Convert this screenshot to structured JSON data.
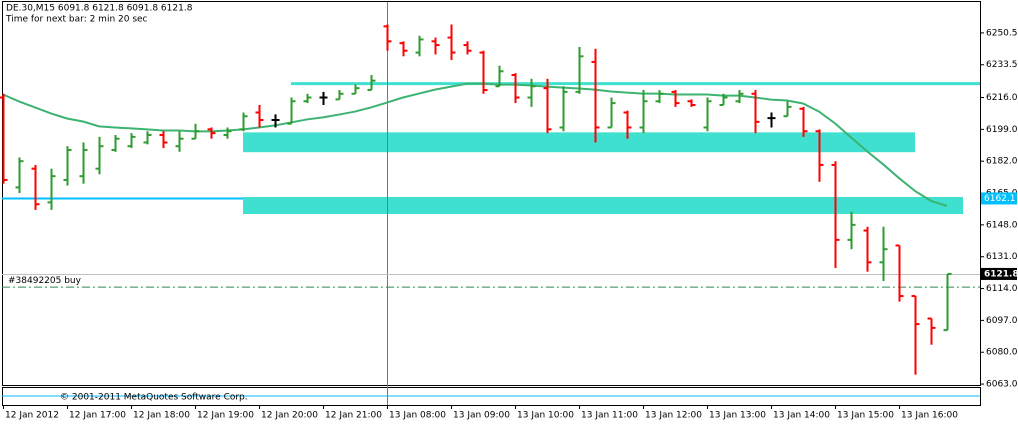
{
  "chart_data": {
    "type": "ohlc",
    "title": "DE.30,M15  6091.8 6121.8 6091.8 6121.8",
    "subtitle": "Time for next bar: 2 min 20 sec",
    "copyright": "© 2001-2011 MetaQuotes Software Corp.",
    "categories": [
      "12 Jan 2012",
      null,
      null,
      null,
      "12 Jan 17:00",
      null,
      null,
      null,
      "12 Jan 18:00",
      null,
      null,
      null,
      "12 Jan 19:00",
      null,
      null,
      null,
      "12 Jan 20:00",
      null,
      null,
      null,
      "12 Jan 21:00",
      null,
      null,
      null,
      "13 Jan 08:00",
      null,
      null,
      null,
      "13 Jan 09:00",
      null,
      null,
      null,
      "13 Jan 10:00",
      null,
      null,
      null,
      "13 Jan 11:00",
      null,
      null,
      null,
      "13 Jan 12:00",
      null,
      null,
      null,
      "13 Jan 13:00",
      null,
      null,
      null,
      "13 Jan 14:00",
      null,
      null,
      null,
      "13 Jan 15:00",
      null,
      null,
      null,
      "13 Jan 16:00",
      null,
      null,
      null
    ],
    "open": [
      6216,
      6168,
      6178,
      6160,
      6172,
      6174,
      6178,
      6188,
      6190,
      6192,
      6196,
      6190,
      6194,
      6199,
      6196,
      6199,
      6208,
      6204,
      6202,
      6214,
      6216,
      6215,
      6218,
      6220,
      6254,
      6245,
      6240,
      6246,
      6248,
      6244,
      6240,
      6222,
      6228,
      6216,
      6221,
      6200,
      6219,
      6235,
      6200,
      6208,
      6200,
      6214,
      6219,
      6214,
      6200,
      6212,
      6214,
      6218,
      6205,
      6206,
      6210,
      6198,
      6180,
      6140,
      6145,
      6128,
      6137,
      6110,
      6098,
      6091.8
    ],
    "high": [
      6218,
      6184,
      6180,
      6178,
      6190,
      6192,
      6195,
      6196,
      6197,
      6198,
      6198,
      6198,
      6202,
      6200,
      6200,
      6208,
      6212,
      6207,
      6216,
      6218,
      6219,
      6220,
      6223,
      6228,
      6255,
      6246,
      6249,
      6248,
      6255,
      6246,
      6241,
      6233,
      6229,
      6226,
      6226,
      6222,
      6243,
      6242,
      6216,
      6209,
      6220,
      6220,
      6220,
      6215,
      6216,
      6218,
      6220,
      6220,
      6208,
      6214,
      6211,
      6199,
      6182,
      6155,
      6147,
      6147,
      6137,
      6110,
      6098,
      6121.8
    ],
    "low": [
      6170,
      6165,
      6156,
      6156,
      6169,
      6170,
      6175,
      6187,
      6189,
      6191,
      6189,
      6187,
      6194,
      6194,
      6194,
      6198,
      6200,
      6200,
      6202,
      6213,
      6212,
      6215,
      6218,
      6220,
      6241,
      6238,
      6238,
      6239,
      6236,
      6239,
      6218,
      6222,
      6213,
      6211,
      6197,
      6198,
      6218,
      6192,
      6200,
      6194,
      6197,
      6213,
      6211,
      6211,
      6198,
      6212,
      6213,
      6197,
      6200,
      6206,
      6195,
      6171,
      6125,
      6135,
      6123,
      6118,
      6107,
      6068,
      6084,
      6091.8
    ],
    "close": [
      6172,
      6182,
      6159,
      6174,
      6188,
      6188,
      6190,
      6194,
      6195,
      6196,
      6192,
      6194,
      6198,
      6197,
      6198,
      6206,
      6204,
      6204,
      6214,
      6216,
      6216,
      6218,
      6221,
      6225,
      6246,
      6241,
      6247,
      6244,
      6240,
      6241,
      6220,
      6230,
      6216,
      6222,
      6199,
      6219,
      6238,
      6200,
      6213,
      6200,
      6214,
      6218,
      6213,
      6212,
      6214,
      6216,
      6218,
      6203,
      6205,
      6211,
      6198,
      6180,
      6140,
      6148,
      6128,
      6135,
      6110,
      6095,
      6093,
      6121.8
    ],
    "up_color": "#2e9b2e",
    "down_color": "#ff0000",
    "flat_color": "#000000",
    "ma": {
      "color": "#3cb371",
      "values": [
        6217.6,
        6213.9,
        6210.7,
        6207.5,
        6204.8,
        6203.2,
        6200.6,
        6200.0,
        6199.5,
        6199.0,
        6198.4,
        6198.4,
        6197.9,
        6197.9,
        6198.4,
        6199.0,
        6200.0,
        6201.1,
        6202.7,
        6204.3,
        6205.4,
        6206.9,
        6208.5,
        6210.7,
        6213.3,
        6216.0,
        6218.1,
        6220.2,
        6221.8,
        6223.4,
        6223.4,
        6222.9,
        6222.9,
        6222.4,
        6221.8,
        6221.3,
        6220.8,
        6220.2,
        6219.2,
        6218.6,
        6218.1,
        6218.1,
        6217.6,
        6217.6,
        6217.6,
        6217.0,
        6217.0,
        6216.0,
        6214.9,
        6214.4,
        6212.8,
        6208.5,
        6202.2,
        6194.7,
        6187.3,
        6180.4,
        6173.0,
        6166.1,
        6160.8,
        6158.1
      ]
    },
    "zones": [
      {
        "from": 15,
        "to": 57,
        "top": 6197.4,
        "bottom": 6186.8,
        "color": "#40e0d0"
      },
      {
        "from": 15,
        "to": 60,
        "top": 6162.9,
        "bottom": 6153.8,
        "color": "#40e0d0"
      }
    ],
    "level_line": {
      "from": 18,
      "value": 6223.4,
      "color": "#40e0d0"
    },
    "blue_line": {
      "to": 15,
      "value": 6162.1,
      "color": "#00bfff",
      "label": "6162.1"
    },
    "order_line": {
      "value": 6115,
      "label": "#38492205 buy",
      "color": "#2e8b57"
    },
    "price_line": {
      "value": 6121.8,
      "label": "6121.8"
    },
    "separator": 24,
    "ylim": [
      6062.5,
      6267
    ],
    "yticks": [
      6250.5,
      6233.5,
      {
        "value": 6216,
        "label": "6216.0"
      },
      {
        "value": 6199,
        "label": "6199.0"
      },
      {
        "value": 6182,
        "label": "6182.0"
      },
      {
        "value": 6165,
        "label": "6165.0"
      },
      {
        "value": 6148,
        "label": "6148.0"
      },
      {
        "value": 6131,
        "label": "6131.0"
      },
      {
        "value": 6114,
        "label": "6114.0"
      },
      {
        "value": 6097,
        "label": "6097.0"
      },
      {
        "value": 6080,
        "label": "6080.0"
      },
      {
        "value": 6063,
        "label": "6063.0"
      }
    ]
  }
}
